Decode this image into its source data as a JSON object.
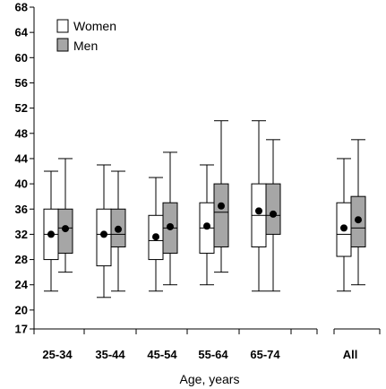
{
  "chart_data": {
    "type": "box",
    "title": "",
    "xlabel": "Age, years",
    "ylabel": "",
    "ylim": [
      17,
      68
    ],
    "yticks": [
      17,
      20,
      24,
      28,
      32,
      36,
      40,
      44,
      48,
      52,
      56,
      60,
      64,
      68
    ],
    "legend_position": "top-left",
    "categories": [
      "25-34",
      "35-44",
      "45-54",
      "55-64",
      "65-74",
      "All"
    ],
    "series": [
      {
        "name": "Women",
        "color": "#ffffff",
        "boxes": [
          {
            "whisker_low": 23,
            "q1": 28,
            "median": 32,
            "q3": 36,
            "whisker_high": 42,
            "mean": 32.0
          },
          {
            "whisker_low": 22,
            "q1": 27,
            "median": 32,
            "q3": 36,
            "whisker_high": 43,
            "mean": 32.0
          },
          {
            "whisker_low": 23,
            "q1": 28,
            "median": 31,
            "q3": 35,
            "whisker_high": 41,
            "mean": 31.6
          },
          {
            "whisker_low": 24,
            "q1": 29,
            "median": 33,
            "q3": 37,
            "whisker_high": 43,
            "mean": 33.3
          },
          {
            "whisker_low": 23,
            "q1": 30,
            "median": 35,
            "q3": 40,
            "whisker_high": 50,
            "mean": 35.7
          },
          {
            "whisker_low": 23,
            "q1": 28.5,
            "median": 32,
            "q3": 37,
            "whisker_high": 44,
            "mean": 33.0
          }
        ]
      },
      {
        "name": "Men",
        "color": "#a6a6a6",
        "boxes": [
          {
            "whisker_low": 26,
            "q1": 29,
            "median": 33,
            "q3": 36,
            "whisker_high": 44,
            "mean": 32.9
          },
          {
            "whisker_low": 23,
            "q1": 30,
            "median": 32,
            "q3": 36,
            "whisker_high": 42,
            "mean": 32.8
          },
          {
            "whisker_low": 24,
            "q1": 29,
            "median": 33,
            "q3": 37,
            "whisker_high": 45,
            "mean": 33.2
          },
          {
            "whisker_low": 26,
            "q1": 30,
            "median": 35.5,
            "q3": 40,
            "whisker_high": 50,
            "mean": 36.5
          },
          {
            "whisker_low": 23,
            "q1": 32,
            "median": 35,
            "q3": 40,
            "whisker_high": 47,
            "mean": 35.2
          },
          {
            "whisker_low": 24,
            "q1": 30,
            "median": 33,
            "q3": 38,
            "whisker_high": 47,
            "mean": 34.3
          }
        ]
      }
    ]
  }
}
